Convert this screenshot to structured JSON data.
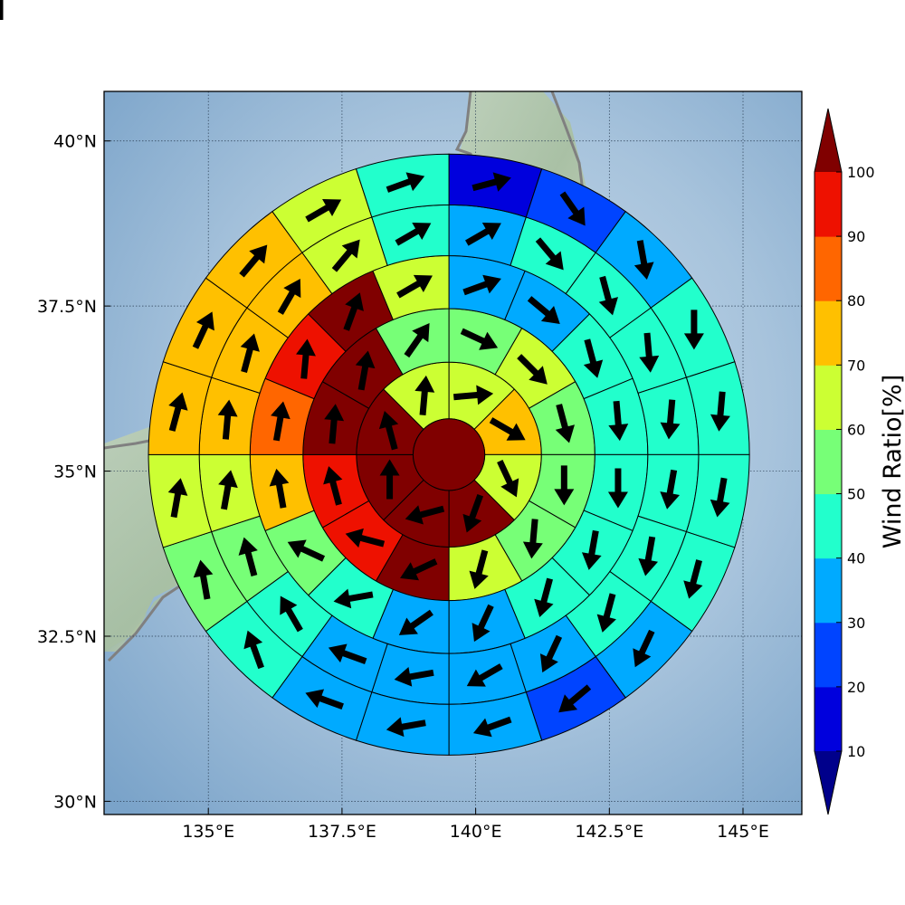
{
  "chart_data": {
    "type": "heatmap",
    "subtype": "polar-sector-map-with-wind-vectors",
    "x_ticks": [
      "135°E",
      "137.5°E",
      "140°E",
      "142.5°E",
      "145°E"
    ],
    "x_tick_values": [
      135,
      137.5,
      140,
      142.5,
      145
    ],
    "y_ticks": [
      "30°N",
      "32.5°N",
      "35°N",
      "37.5°N",
      "40°N"
    ],
    "y_tick_values": [
      30,
      32.5,
      35,
      37.5,
      40
    ],
    "xlim": [
      133.05,
      146.1
    ],
    "ylim": [
      29.8,
      40.75
    ],
    "center": {
      "lon": 139.5,
      "lat": 35.25
    },
    "ring_radii_deg": [
      0.67,
      1.73,
      2.73,
      3.72,
      4.67,
      5.62
    ],
    "grid": true,
    "colorbar": {
      "label": "Wind Ratio[%]",
      "ticks": [
        "10",
        "20",
        "30",
        "40",
        "50",
        "60",
        "70",
        "80",
        "90",
        "100"
      ],
      "bounds": [
        10,
        20,
        30,
        40,
        50,
        60,
        70,
        80,
        90,
        100
      ],
      "colors": [
        "#0000dd",
        "#0044ff",
        "#00aaff",
        "#22ffcc",
        "#77ff77",
        "#ccff33",
        "#ffc000",
        "#ff6600",
        "#ee1100"
      ],
      "under_color": "#00008b",
      "over_color": "#800000",
      "extend": "both",
      "placement": "right"
    },
    "center_cell": {
      "value": 105,
      "wind_dir_deg": null
    },
    "rings": [
      {
        "ring": 1,
        "sectors": 8,
        "values": [
          65,
          72,
          62,
          105,
          105,
          105,
          105,
          62
        ],
        "wind_dir_deg": [
          85,
          120,
          155,
          200,
          255,
          0,
          345,
          5
        ]
      },
      {
        "ring": 2,
        "sectors": 12,
        "values": [
          55,
          65,
          55,
          55,
          55,
          62,
          105,
          95,
          95,
          105,
          105,
          55
        ],
        "wind_dir_deg": [
          115,
          135,
          165,
          180,
          185,
          195,
          245,
          285,
          345,
          5,
          10,
          35
        ]
      },
      {
        "ring": 3,
        "sectors": 16,
        "values": [
          35,
          35,
          45,
          45,
          45,
          45,
          40,
          35,
          35,
          45,
          55,
          75,
          85,
          92,
          105,
          62
        ],
        "wind_dir_deg": [
          70,
          130,
          165,
          175,
          180,
          190,
          195,
          205,
          235,
          260,
          295,
          350,
          10,
          5,
          20,
          60
        ]
      },
      {
        "ring": 4,
        "sectors": 20,
        "values": [
          35,
          45,
          45,
          45,
          45,
          40,
          40,
          40,
          35,
          35,
          35,
          35,
          45,
          55,
          62,
          75,
          75,
          75,
          62,
          45
        ],
        "wind_dir_deg": [
          60,
          140,
          165,
          175,
          185,
          190,
          190,
          195,
          205,
          240,
          260,
          290,
          330,
          345,
          10,
          5,
          15,
          30,
          40,
          60
        ]
      },
      {
        "ring": 5,
        "sectors": 20,
        "values": [
          15,
          25,
          35,
          45,
          45,
          45,
          40,
          35,
          25,
          35,
          30,
          30,
          45,
          55,
          62,
          75,
          75,
          75,
          62,
          40
        ],
        "wind_dir_deg": [
          75,
          145,
          170,
          180,
          185,
          190,
          195,
          205,
          230,
          250,
          260,
          290,
          340,
          350,
          10,
          15,
          25,
          40,
          60,
          70
        ]
      },
      {
        "ring": 6,
        "sectors": 24,
        "values": [
          15,
          15,
          15,
          25,
          25,
          35,
          35,
          35,
          40,
          30,
          25,
          25,
          30,
          25,
          25,
          20,
          45,
          55,
          55,
          62,
          62,
          62,
          55,
          45
        ],
        "wind_dir_deg": [
          60,
          100,
          165,
          175,
          180,
          185,
          190,
          195,
          200,
          205,
          220,
          240,
          255,
          260,
          285,
          310,
          335,
          350,
          5,
          15,
          25,
          35,
          45,
          60
        ]
      }
    ]
  }
}
